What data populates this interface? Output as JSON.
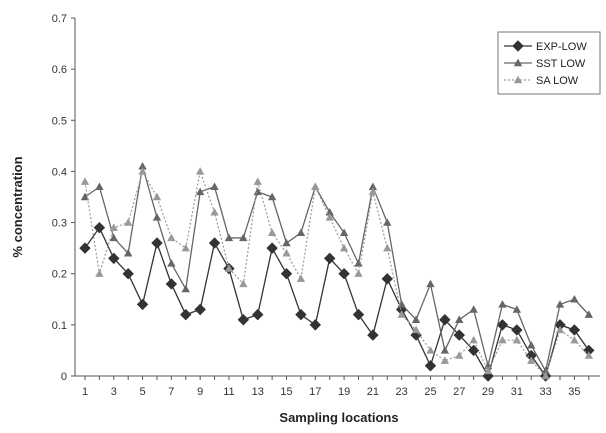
{
  "chart_data": {
    "type": "line",
    "title": "",
    "xlabel": "Sampling locations",
    "ylabel": "% concentration",
    "x": [
      1,
      2,
      3,
      4,
      5,
      6,
      7,
      8,
      9,
      10,
      11,
      12,
      13,
      14,
      15,
      16,
      17,
      18,
      19,
      20,
      21,
      22,
      23,
      24,
      25,
      26,
      27,
      28,
      29,
      30,
      31,
      32,
      33,
      34,
      35,
      36
    ],
    "x_tick_labels": [
      "1",
      "3",
      "5",
      "7",
      "9",
      "11",
      "13",
      "15",
      "17",
      "19",
      "21",
      "23",
      "25",
      "27",
      "29",
      "31",
      "33",
      "35"
    ],
    "ylim": [
      0,
      0.7
    ],
    "y_ticks": [
      0,
      0.1,
      0.2,
      0.3,
      0.4,
      0.5,
      0.6,
      0.7
    ],
    "y_tick_labels": [
      "0",
      "0.1",
      "0.2",
      "0.3",
      "0.4",
      "0.5",
      "0.6",
      "0.7"
    ],
    "grid": false,
    "legend_position": "top-right",
    "series": [
      {
        "name": "EXP-LOW",
        "color": "#333333",
        "marker": "diamond",
        "dash": "solid",
        "values": [
          0.25,
          0.29,
          0.23,
          0.2,
          0.14,
          0.26,
          0.18,
          0.12,
          0.13,
          0.26,
          0.21,
          0.11,
          0.12,
          0.25,
          0.2,
          0.12,
          0.1,
          0.23,
          0.2,
          0.12,
          0.08,
          0.19,
          0.13,
          0.08,
          0.02,
          0.11,
          0.08,
          0.05,
          0.0,
          0.1,
          0.09,
          0.04,
          0.0,
          0.1,
          0.09,
          0.05
        ]
      },
      {
        "name": "SST LOW",
        "color": "#666666",
        "marker": "triangle",
        "dash": "solid",
        "values": [
          0.35,
          0.37,
          0.27,
          0.24,
          0.41,
          0.31,
          0.22,
          0.17,
          0.36,
          0.37,
          0.27,
          0.27,
          0.36,
          0.35,
          0.26,
          0.28,
          0.37,
          0.32,
          0.28,
          0.22,
          0.37,
          0.3,
          0.14,
          0.11,
          0.18,
          0.05,
          0.11,
          0.13,
          0.02,
          0.14,
          0.13,
          0.06,
          0.01,
          0.14,
          0.15,
          0.12
        ]
      },
      {
        "name": "SA LOW",
        "color": "#999999",
        "marker": "triangle",
        "dash": "dotted",
        "values": [
          0.38,
          0.2,
          0.29,
          0.3,
          0.4,
          0.35,
          0.27,
          0.25,
          0.4,
          0.32,
          0.21,
          0.18,
          0.38,
          0.28,
          0.24,
          0.19,
          0.37,
          0.31,
          0.25,
          0.2,
          0.36,
          0.25,
          0.12,
          0.09,
          0.05,
          0.03,
          0.04,
          0.07,
          0.01,
          0.07,
          0.07,
          0.03,
          0.0,
          0.09,
          0.07,
          0.04
        ]
      }
    ]
  }
}
